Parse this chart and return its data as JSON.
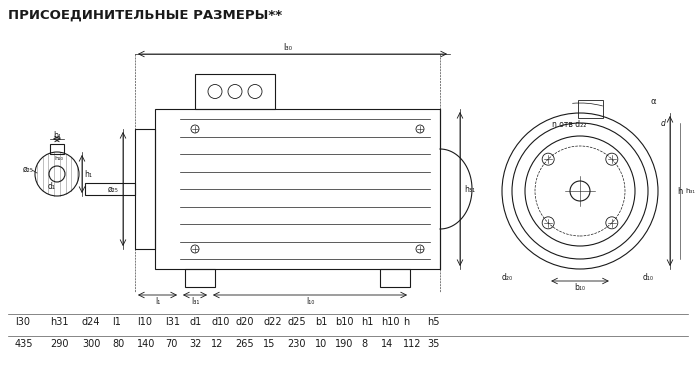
{
  "title": "ПРИСОЕДИНИТЕЛЬНЫЕ РАЗМЕРЫ**",
  "background_color": "#ffffff",
  "table_headers": [
    "l30",
    "h31",
    "d24",
    "l1",
    "l10",
    "l31",
    "d1",
    "d10",
    "d20",
    "d22",
    "d25",
    "b1",
    "b10",
    "h1",
    "h10",
    "h",
    "h5"
  ],
  "table_values": [
    "435",
    "290",
    "300",
    "80",
    "140",
    "70",
    "32",
    "12",
    "265",
    "15",
    "230",
    "10",
    "190",
    "8",
    "14",
    "112",
    "35"
  ],
  "line_color": "#1a1a1a",
  "text_color": "#1a1a1a",
  "table_line_color": "#555555"
}
